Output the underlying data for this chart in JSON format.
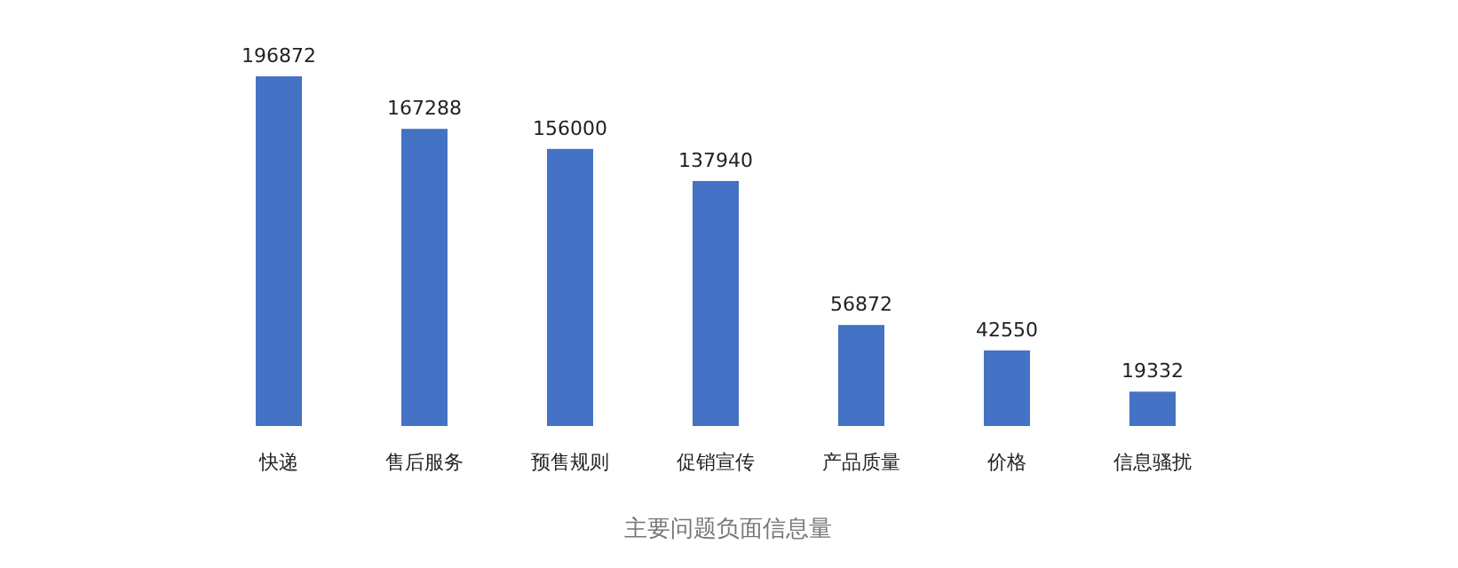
{
  "chart_data": {
    "type": "bar",
    "title": "主要问题负面信息量",
    "categories": [
      "快递",
      "售后服务",
      "预售规则",
      "促销宣传",
      "产品质量",
      "价格",
      "信息骚扰"
    ],
    "values": [
      196872,
      167288,
      156000,
      137940,
      56872,
      42550,
      19332
    ],
    "color": "#4472c4",
    "data_labels": true
  }
}
